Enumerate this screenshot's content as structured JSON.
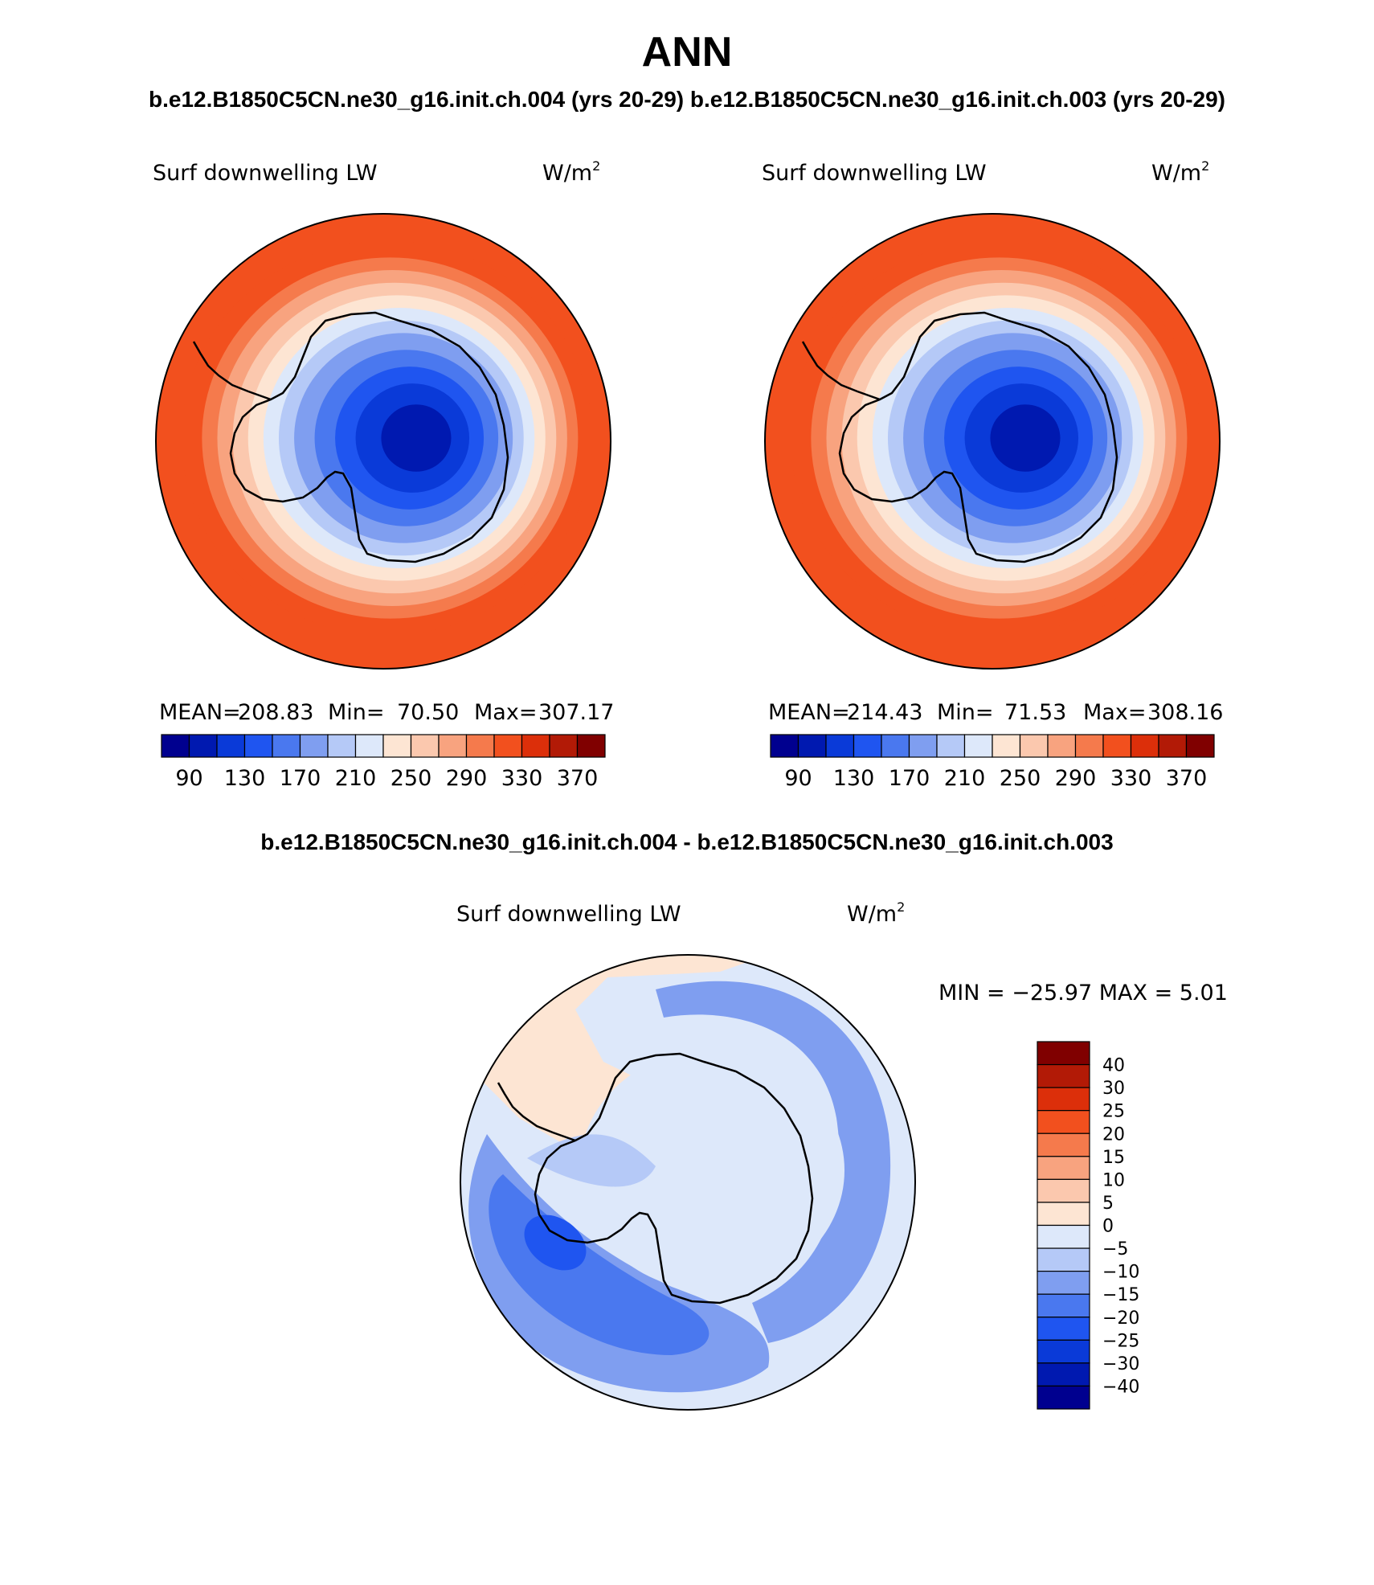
{
  "figure": {
    "season": "ANN",
    "header": "b.e12.B1850C5CN.ne30_g16.init.ch.004 (yrs 20-29) b.e12.B1850C5CN.ne30_g16.init.ch.003 (yrs 20-29)",
    "diff_title": "b.e12.B1850C5CN.ne30_g16.init.ch.004 - b.e12.B1850C5CN.ne30_g16.init.ch.003"
  },
  "colors": {
    "abs_palette": [
      "#00008f",
      "#0019b0",
      "#0a3ad8",
      "#1f55f0",
      "#4a78ef",
      "#7f9ef0",
      "#b5c9f7",
      "#dde8fa",
      "#fde5d3",
      "#fbc8ae",
      "#f8a37f",
      "#f57a4c",
      "#f2501e",
      "#dc2f0a",
      "#b21a06",
      "#800000"
    ],
    "diff_palette": [
      "#00008f",
      "#0019b0",
      "#0a3ad8",
      "#1f55f0",
      "#4a78ef",
      "#7f9ef0",
      "#b5c9f7",
      "#dde8fa",
      "#fde5d3",
      "#fbc8ae",
      "#f8a37f",
      "#f57a4c",
      "#f2501e",
      "#dc2f0a",
      "#b21a06",
      "#800000"
    ],
    "coastline": "#000000"
  },
  "chart_data": [
    {
      "type": "heatmap",
      "projection": "south-polar-stereographic",
      "label": "Surf downwelling LW",
      "units_base": "W/m",
      "units_exp": "2",
      "stats": {
        "mean_label": "MEAN=",
        "mean": "208.83",
        "min_label": "Min=",
        "min": "70.50",
        "max_label": "Max=",
        "max": "307.17"
      },
      "levels": [
        70,
        90,
        110,
        130,
        150,
        170,
        190,
        210,
        230,
        250,
        270,
        290,
        310,
        330,
        350,
        370
      ],
      "tick_labels": [
        "90",
        "130",
        "170",
        "210",
        "250",
        "290",
        "330",
        "370"
      ],
      "zonal_bands": [
        {
          "max_colat_deg": 8,
          "value": 75
        },
        {
          "max_colat_deg": 13,
          "value": 95
        },
        {
          "max_colat_deg": 17,
          "value": 115
        },
        {
          "max_colat_deg": 21,
          "value": 135
        },
        {
          "max_colat_deg": 25,
          "value": 155
        },
        {
          "max_colat_deg": 28,
          "value": 175
        },
        {
          "max_colat_deg": 31,
          "value": 195
        },
        {
          "max_colat_deg": 34,
          "value": 215
        },
        {
          "max_colat_deg": 37,
          "value": 235
        },
        {
          "max_colat_deg": 40,
          "value": 255
        },
        {
          "max_colat_deg": 43,
          "value": 275
        },
        {
          "max_colat_deg": 47,
          "value": 290
        },
        {
          "max_colat_deg": 52,
          "value": 300
        }
      ]
    },
    {
      "type": "heatmap",
      "projection": "south-polar-stereographic",
      "label": "Surf downwelling LW",
      "units_base": "W/m",
      "units_exp": "2",
      "stats": {
        "mean_label": "MEAN=",
        "mean": "214.43",
        "min_label": "Min=",
        "min": "71.53",
        "max_label": "Max=",
        "max": "308.16"
      },
      "levels": [
        70,
        90,
        110,
        130,
        150,
        170,
        190,
        210,
        230,
        250,
        270,
        290,
        310,
        330,
        350,
        370
      ],
      "tick_labels": [
        "90",
        "130",
        "170",
        "210",
        "250",
        "290",
        "330",
        "370"
      ],
      "zonal_bands": [
        {
          "max_colat_deg": 8,
          "value": 75
        },
        {
          "max_colat_deg": 13,
          "value": 95
        },
        {
          "max_colat_deg": 17,
          "value": 115
        },
        {
          "max_colat_deg": 21,
          "value": 135
        },
        {
          "max_colat_deg": 25,
          "value": 155
        },
        {
          "max_colat_deg": 28,
          "value": 175
        },
        {
          "max_colat_deg": 31,
          "value": 195
        },
        {
          "max_colat_deg": 34,
          "value": 215
        },
        {
          "max_colat_deg": 37,
          "value": 235
        },
        {
          "max_colat_deg": 40,
          "value": 255
        },
        {
          "max_colat_deg": 43,
          "value": 275
        },
        {
          "max_colat_deg": 47,
          "value": 295
        },
        {
          "max_colat_deg": 52,
          "value": 305
        }
      ]
    },
    {
      "type": "heatmap",
      "projection": "south-polar-stereographic",
      "label": "Surf downwelling LW",
      "units_base": "W/m",
      "units_exp": "2",
      "stats_text": "MIN = −25.97 MAX =    5.01",
      "levels": [
        -40,
        -30,
        -25,
        -20,
        -15,
        -10,
        -5,
        0,
        5,
        10,
        15,
        20,
        25,
        30,
        40
      ],
      "tick_labels": [
        "40",
        "30",
        "25",
        "20",
        "15",
        "10",
        "5",
        "0",
        "−5",
        "−10",
        "−15",
        "−20",
        "−25",
        "−30",
        "−40"
      ],
      "background_value": -2,
      "features": [
        {
          "region": "antarctic-peninsula-ocean",
          "value": 2
        },
        {
          "region": "weddell-sea-west",
          "value": -8
        },
        {
          "region": "southwest-pacific-max",
          "value": -24
        },
        {
          "region": "southwest-pacific-mid",
          "value": -17
        },
        {
          "region": "southwest-pacific-outer",
          "value": -12
        },
        {
          "region": "indian-ocean-band",
          "value": -12
        },
        {
          "region": "southern-ocean-band",
          "value": -8
        }
      ]
    }
  ]
}
